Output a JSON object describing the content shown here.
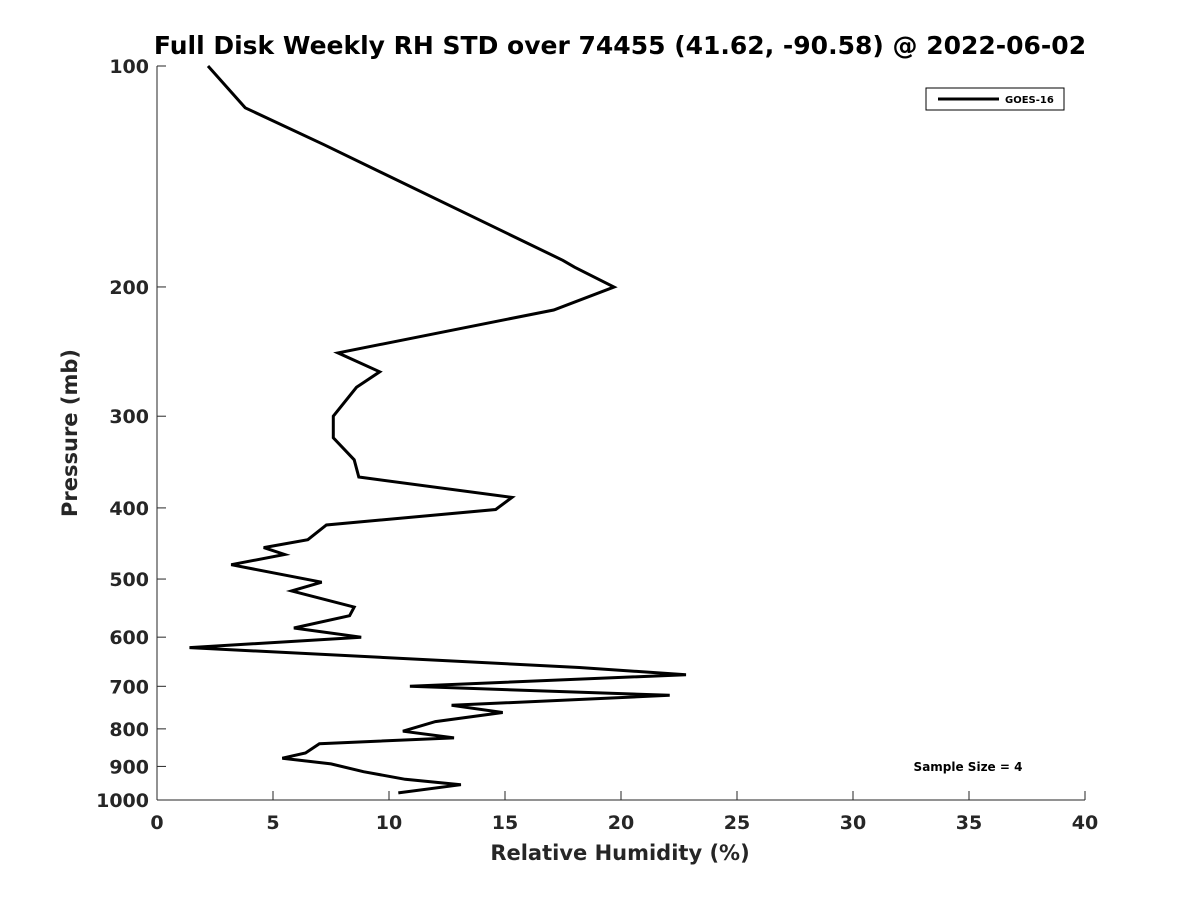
{
  "chart_data": {
    "type": "line",
    "title": "Full Disk Weekly RH STD over 74455 (41.62, -90.58) @ 2022-06-02",
    "xlabel": "Relative Humidity (%)",
    "ylabel": "Pressure (mb)",
    "xlim": [
      0,
      40
    ],
    "ylim": [
      100,
      1000
    ],
    "y_scale": "log",
    "y_reversed": true,
    "x_ticks": [
      0,
      5,
      10,
      15,
      20,
      25,
      30,
      35,
      40
    ],
    "x_tick_labels": [
      "0",
      "5",
      "10",
      "15",
      "20",
      "25",
      "30",
      "35",
      "40"
    ],
    "y_ticks": [
      100,
      200,
      300,
      400,
      500,
      600,
      700,
      800,
      900,
      1000
    ],
    "y_tick_labels": [
      "100",
      "200",
      "300",
      "400",
      "500",
      "600",
      "700",
      "800",
      "900",
      "1000"
    ],
    "grid": false,
    "legend_position": "top-right",
    "annotation": "Sample Size = 4",
    "series": [
      {
        "name": "GOES-16",
        "color": "#000000",
        "x": [
          2.2,
          3.8,
          7.2,
          17.5,
          18.0,
          19.7,
          17.1,
          7.8,
          9.6,
          8.6,
          7.6,
          7.6,
          8.5,
          8.7,
          15.3,
          14.6,
          7.3,
          6.5,
          4.6,
          5.5,
          3.2,
          7.1,
          5.8,
          8.5,
          8.3,
          5.9,
          8.8,
          1.4,
          18.2,
          22.8,
          10.9,
          22.1,
          12.7,
          14.9,
          12.0,
          10.6,
          12.8,
          7.0,
          6.4,
          5.4,
          7.5,
          8.9,
          10.7,
          13.1,
          10.4
        ],
        "y": [
          100,
          114,
          128,
          184,
          188,
          200,
          215,
          246,
          261,
          274,
          300,
          321,
          344,
          363,
          387,
          402,
          422,
          442,
          453,
          463,
          478,
          505,
          519,
          546,
          561,
          583,
          600,
          620,
          660,
          675,
          700,
          720,
          743,
          760,
          782,
          806,
          823,
          838,
          863,
          877,
          893,
          915,
          937,
          953,
          978
        ]
      }
    ]
  }
}
